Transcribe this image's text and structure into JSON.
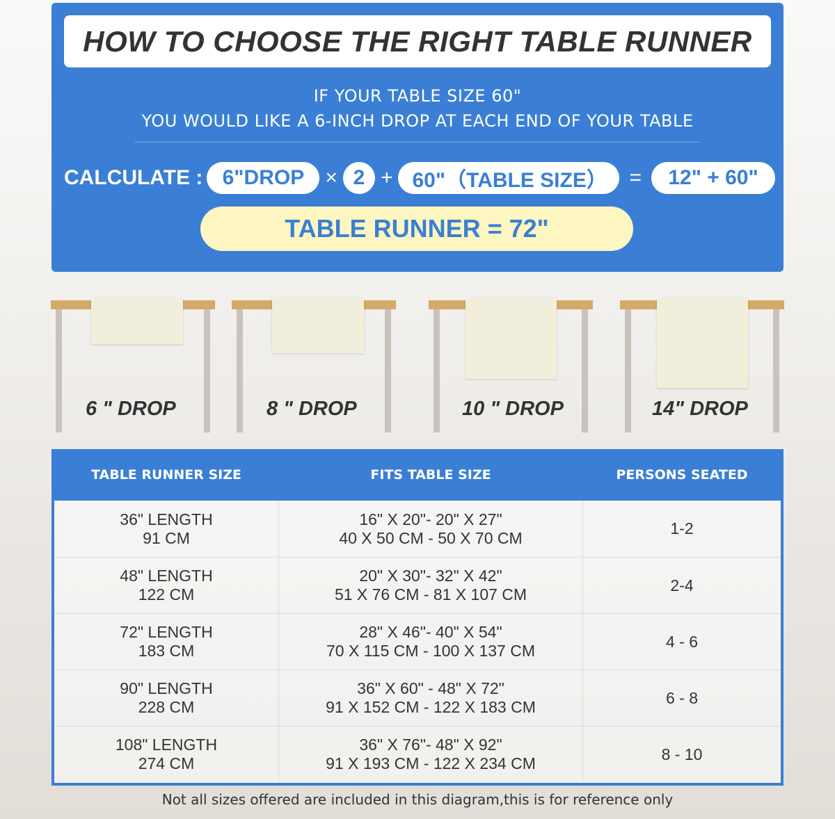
{
  "colors": {
    "accent": "#3a7fd5",
    "highlight": "#fdf6c0",
    "table_top": "#d4a96a",
    "runner": "#f1eedc"
  },
  "header": {
    "title": "HOW TO CHOOSE THE RIGHT TABLE RUNNER",
    "line1": "IF YOUR TABLE SIZE 60\"",
    "line2": "YOU WOULD LIKE A 6-INCH DROP AT EACH END OF YOUR TABLE"
  },
  "calc": {
    "label": "CALCULATE :",
    "drop": "6\"DROP",
    "times": "×",
    "multiplier": "2",
    "plus": "+",
    "table_size": "60\"（TABLE SIZE）",
    "equals": "=",
    "sum": "12\" + 60\"",
    "result": "TABLE RUNNER = 72\""
  },
  "drops": [
    {
      "label": "6 \" DROP",
      "inches": 6
    },
    {
      "label": "8 \" DROP",
      "inches": 8
    },
    {
      "label": "10 \" DROP",
      "inches": 10
    },
    {
      "label": "14\" DROP",
      "inches": 14
    }
  ],
  "size_table": {
    "headers": [
      "TABLE RUNNER SIZE",
      "FITS TABLE SIZE",
      "PERSONS SEATED"
    ],
    "rows": [
      {
        "size": [
          "36\" LENGTH",
          "91 CM"
        ],
        "fits": [
          "16\" X 20\"- 20\" X 27\"",
          "40 X 50 CM - 50 X 70 CM"
        ],
        "persons": "1-2"
      },
      {
        "size": [
          "48\" LENGTH",
          "122 CM"
        ],
        "fits": [
          "20\" X 30\"- 32\" X 42\"",
          "51 X 76 CM - 81 X 107 CM"
        ],
        "persons": "2-4"
      },
      {
        "size": [
          "72\" LENGTH",
          "183 CM"
        ],
        "fits": [
          "28\" X 46\"- 40\" X 54\"",
          "70 X 115 CM - 100 X 137 CM"
        ],
        "persons": "4 - 6"
      },
      {
        "size": [
          "90\" LENGTH",
          "228 CM"
        ],
        "fits": [
          "36\" X 60\" - 48\" X 72\"",
          "91 X 152 CM - 122 X 183 CM"
        ],
        "persons": "6 - 8"
      },
      {
        "size": [
          "108\" LENGTH",
          "274 CM"
        ],
        "fits": [
          "36\" X 76\"- 48\" X 92\"",
          "91 X 193 CM - 122 X 234 CM"
        ],
        "persons": "8 - 10"
      }
    ]
  },
  "footnote": "Not all sizes offered are included in this diagram,this is for reference only"
}
